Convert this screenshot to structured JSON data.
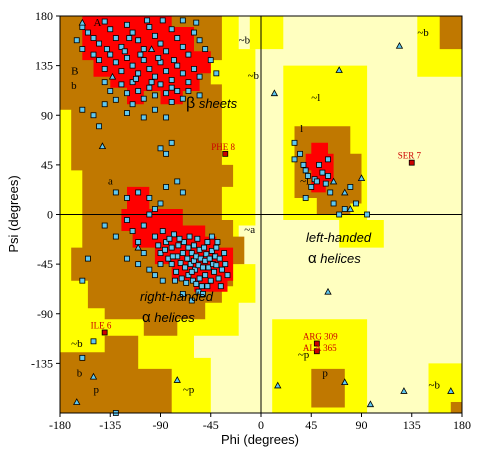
{
  "chart_data": {
    "type": "scatter",
    "xlabel": "Phi (degrees)",
    "ylabel": "Psi (degrees)",
    "xlim": [
      -180,
      180
    ],
    "ylim": [
      -180,
      180
    ],
    "x_ticks": [
      "-180",
      "-135",
      "-90",
      "-45",
      "0",
      "45",
      "90",
      "135",
      "180"
    ],
    "y_ticks": [
      "180",
      "135",
      "90",
      "45",
      "0",
      "-45",
      "-90",
      "-135"
    ],
    "region_colors": {
      "most_favoured": "#ff0000",
      "additional_allowed": "#c07800",
      "generously_allowed": "#ffff00",
      "disallowed": "#ffffc0"
    },
    "marker_colors": {
      "residue": "#60c8f0",
      "glycine": "#60c8f0",
      "outlier": "#cc0000"
    },
    "region_text": {
      "beta_symbol": "β",
      "beta_rest": " sheets",
      "right_handed": "right-handed",
      "right_alpha_symbol": "α",
      "right_alpha_rest": " helices",
      "left_handed": "left-handed",
      "left_alpha_symbol": "α",
      "left_alpha_rest": " helices"
    },
    "region_letters": [
      {
        "text": "A",
        "phi": -150,
        "psi": 171
      },
      {
        "text": "B",
        "phi": -170,
        "psi": 127
      },
      {
        "text": "b",
        "phi": -170,
        "psi": 114
      },
      {
        "text": "~b",
        "phi": -20,
        "psi": 155
      },
      {
        "text": "~b",
        "phi": -12,
        "psi": 123
      },
      {
        "text": "~b",
        "phi": 140,
        "psi": 162
      },
      {
        "text": "~l",
        "phi": 45,
        "psi": 103
      },
      {
        "text": "l",
        "phi": 35,
        "psi": 75
      },
      {
        "text": "a",
        "phi": -137,
        "psi": 27
      },
      {
        "text": "~a",
        "phi": -15,
        "psi": -17
      },
      {
        "text": "~l",
        "phi": 35,
        "psi": 27
      },
      {
        "text": "~b",
        "phi": -170,
        "psi": -120
      },
      {
        "text": "b",
        "phi": -165,
        "psi": -147
      },
      {
        "text": "~p",
        "phi": 33,
        "psi": -130
      },
      {
        "text": "p",
        "phi": -150,
        "psi": -162
      },
      {
        "text": "p",
        "phi": 55,
        "psi": -147
      },
      {
        "text": "~b",
        "phi": 150,
        "psi": -158
      },
      {
        "text": "~p",
        "phi": -70,
        "psi": -162
      }
    ],
    "outliers": [
      {
        "label": "PHE 8",
        "phi": -32,
        "psi": 55
      },
      {
        "label": "SER 7",
        "phi": 135,
        "psi": 47
      },
      {
        "label": "ILE 6",
        "phi": -140,
        "psi": -107
      },
      {
        "label": "ARG 309",
        "phi": 50,
        "psi": -117
      },
      {
        "label": "ALA 365",
        "phi": 50,
        "psi": -124
      }
    ],
    "glycines": [
      [
        -160,
        174
      ],
      [
        -98,
        150
      ],
      [
        -133,
        125
      ],
      [
        12,
        110
      ],
      [
        70,
        131
      ],
      [
        65,
        30
      ],
      [
        75,
        20
      ],
      [
        90,
        33
      ],
      [
        80,
        5
      ],
      [
        -150,
        -147
      ],
      [
        -165,
        -170
      ],
      [
        75,
        -152
      ],
      [
        98,
        -172
      ],
      [
        -75,
        -150
      ],
      [
        60,
        -70
      ],
      [
        124,
        153
      ],
      [
        128,
        -160
      ],
      [
        170,
        -160
      ],
      [
        -110,
        -30
      ],
      [
        -142,
        62
      ],
      [
        15,
        -155
      ]
    ],
    "residues": [
      [
        -160,
        170
      ],
      [
        -155,
        165
      ],
      [
        -150,
        160
      ],
      [
        -145,
        155
      ],
      [
        -140,
        175
      ],
      [
        -135,
        168
      ],
      [
        -130,
        160
      ],
      [
        -125,
        152
      ],
      [
        -120,
        172
      ],
      [
        -115,
        165
      ],
      [
        -110,
        158
      ],
      [
        -105,
        150
      ],
      [
        -100,
        170
      ],
      [
        -95,
        162
      ],
      [
        -90,
        155
      ],
      [
        -85,
        148
      ],
      [
        -80,
        168
      ],
      [
        -75,
        160
      ],
      [
        -70,
        152
      ],
      [
        -65,
        145
      ],
      [
        -60,
        165
      ],
      [
        -55,
        158
      ],
      [
        -50,
        150
      ],
      [
        -145,
        140
      ],
      [
        -140,
        132
      ],
      [
        -135,
        145
      ],
      [
        -130,
        138
      ],
      [
        -125,
        130
      ],
      [
        -120,
        142
      ],
      [
        -115,
        135
      ],
      [
        -110,
        128
      ],
      [
        -105,
        140
      ],
      [
        -100,
        132
      ],
      [
        -95,
        125
      ],
      [
        -90,
        138
      ],
      [
        -85,
        130
      ],
      [
        -80,
        122
      ],
      [
        -75,
        135
      ],
      [
        -70,
        128
      ],
      [
        -65,
        120
      ],
      [
        -60,
        132
      ],
      [
        -55,
        125
      ],
      [
        -125,
        118
      ],
      [
        -120,
        110
      ],
      [
        -115,
        120
      ],
      [
        -110,
        112
      ],
      [
        -105,
        105
      ],
      [
        -100,
        115
      ],
      [
        -95,
        108
      ],
      [
        -90,
        118
      ],
      [
        -85,
        110
      ],
      [
        -80,
        102
      ],
      [
        -75,
        112
      ],
      [
        -70,
        105
      ],
      [
        -65,
        112
      ],
      [
        -135,
        112
      ],
      [
        -130,
        104
      ],
      [
        -115,
        100
      ],
      [
        -160,
        150
      ],
      [
        -165,
        158
      ],
      [
        -150,
        145
      ],
      [
        -140,
        120
      ],
      [
        -45,
        140
      ],
      [
        -40,
        128
      ],
      [
        -55,
        108
      ],
      [
        -95,
        95
      ],
      [
        -85,
        88
      ],
      [
        -118,
        160
      ],
      [
        -102,
        176
      ],
      [
        -88,
        176
      ],
      [
        -70,
        176
      ],
      [
        -58,
        174
      ],
      [
        -138,
        150
      ],
      [
        -122,
        148
      ],
      [
        -108,
        145
      ],
      [
        -92,
        142
      ],
      [
        -78,
        140
      ],
      [
        -112,
        123
      ],
      [
        -98,
        120
      ],
      [
        -80,
        115
      ],
      [
        -140,
        100
      ],
      [
        -150,
        90
      ],
      [
        -160,
        95
      ],
      [
        -145,
        80
      ],
      [
        -120,
        92
      ],
      [
        -105,
        88
      ],
      [
        -90,
        60
      ],
      [
        -85,
        55
      ],
      [
        -80,
        65
      ],
      [
        -130,
        20
      ],
      [
        -160,
        -60
      ],
      [
        -155,
        -40
      ],
      [
        -140,
        -10
      ],
      [
        -130,
        -20
      ],
      [
        -120,
        -5
      ],
      [
        -115,
        -15
      ],
      [
        -110,
        -25
      ],
      [
        -105,
        -10
      ],
      [
        -100,
        0
      ],
      [
        -95,
        5
      ],
      [
        -120,
        15
      ],
      [
        -110,
        20
      ],
      [
        -100,
        15
      ],
      [
        -90,
        10
      ],
      [
        -85,
        25
      ],
      [
        -75,
        30
      ],
      [
        -70,
        20
      ],
      [
        -120,
        -40
      ],
      [
        -110,
        -45
      ],
      [
        -105,
        -35
      ],
      [
        -100,
        -50
      ],
      [
        -95,
        -20
      ],
      [
        -92,
        -28
      ],
      [
        -90,
        -35
      ],
      [
        -88,
        -15
      ],
      [
        -85,
        -25
      ],
      [
        -83,
        -40
      ],
      [
        -80,
        -30
      ],
      [
        -80,
        -45
      ],
      [
        -78,
        -18
      ],
      [
        -76,
        -52
      ],
      [
        -75,
        -38
      ],
      [
        -74,
        -28
      ],
      [
        -72,
        -44
      ],
      [
        -71,
        -58
      ],
      [
        -70,
        -35
      ],
      [
        -69,
        -25
      ],
      [
        -68,
        -48
      ],
      [
        -66,
        -40
      ],
      [
        -65,
        -55
      ],
      [
        -65,
        -30
      ],
      [
        -64,
        -20
      ],
      [
        -63,
        -45
      ],
      [
        -62,
        -35
      ],
      [
        -61,
        -60
      ],
      [
        -60,
        -42
      ],
      [
        -60,
        -28
      ],
      [
        -59,
        -50
      ],
      [
        -58,
        -38
      ],
      [
        -57,
        -22
      ],
      [
        -56,
        -46
      ],
      [
        -55,
        -32
      ],
      [
        -55,
        -58
      ],
      [
        -54,
        -40
      ],
      [
        -53,
        -65
      ],
      [
        -52,
        -48
      ],
      [
        -51,
        -30
      ],
      [
        -50,
        -42
      ],
      [
        -50,
        -55
      ],
      [
        -49,
        -36
      ],
      [
        -48,
        -25
      ],
      [
        -47,
        -48
      ],
      [
        -46,
        -40
      ],
      [
        -45,
        -60
      ],
      [
        -44,
        -33
      ],
      [
        -43,
        -45
      ],
      [
        -42,
        -52
      ],
      [
        -41,
        -38
      ],
      [
        -40,
        -30
      ],
      [
        -40,
        -46
      ],
      [
        -38,
        -58
      ],
      [
        -37,
        -40
      ],
      [
        -35,
        -50
      ],
      [
        -33,
        -35
      ],
      [
        -32,
        -45
      ],
      [
        -30,
        -55
      ],
      [
        -86,
        -32
      ],
      [
        -82,
        -22
      ],
      [
        -79,
        -38
      ],
      [
        -77,
        -60
      ],
      [
        -73,
        -22
      ],
      [
        -67,
        -62
      ],
      [
        -62,
        -52
      ],
      [
        -58,
        -63
      ],
      [
        -56,
        -70
      ],
      [
        -52,
        -72
      ],
      [
        -48,
        -65
      ],
      [
        -44,
        -20
      ],
      [
        -39,
        -25
      ],
      [
        -36,
        -65
      ],
      [
        -90,
        -45
      ],
      [
        -95,
        -55
      ],
      [
        -88,
        -60
      ],
      [
        -70,
        -72
      ],
      [
        -62,
        -78
      ],
      [
        -160,
        -130
      ],
      [
        -150,
        -115
      ],
      [
        -130,
        -180
      ],
      [
        30,
        65
      ],
      [
        35,
        55
      ],
      [
        38,
        45
      ],
      [
        40,
        40
      ],
      [
        42,
        35
      ],
      [
        45,
        25
      ],
      [
        48,
        32
      ],
      [
        50,
        30
      ],
      [
        52,
        45
      ],
      [
        55,
        38
      ],
      [
        58,
        28
      ],
      [
        60,
        35
      ],
      [
        62,
        20
      ],
      [
        40,
        15
      ],
      [
        65,
        10
      ],
      [
        30,
        50
      ],
      [
        75,
        5
      ],
      [
        70,
        0
      ],
      [
        60,
        50
      ],
      [
        80,
        25
      ],
      [
        85,
        10
      ],
      [
        95,
        0
      ]
    ]
  }
}
